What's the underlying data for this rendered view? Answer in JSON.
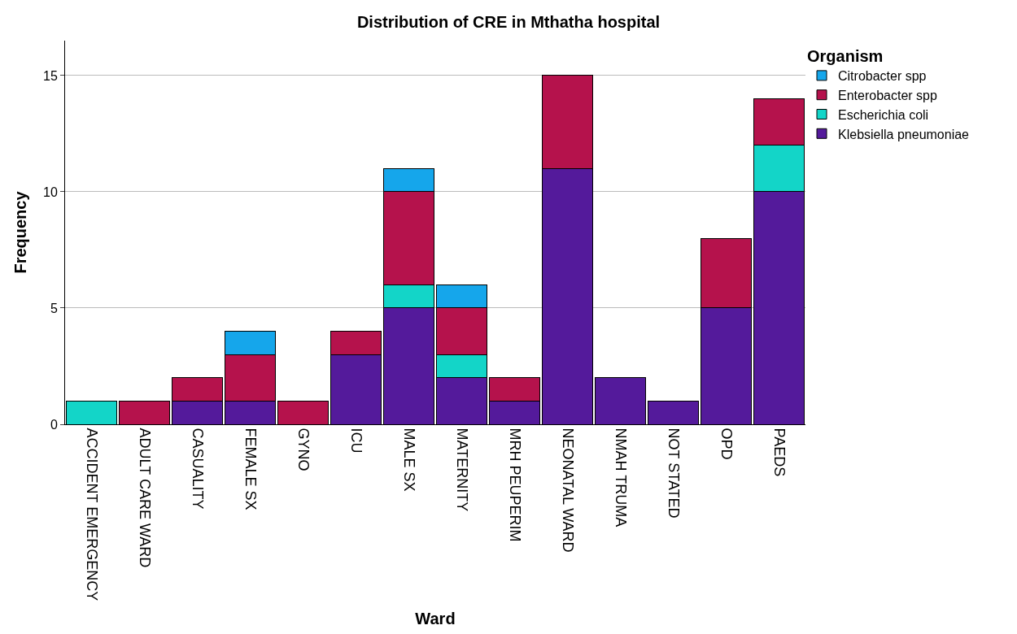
{
  "chart_data": {
    "type": "bar",
    "title": "Distribution of CRE in Mthatha hospital",
    "xlabel": "Ward",
    "ylabel": "Frequency",
    "legend_title": "Organism",
    "stacked": true,
    "legend": "top right",
    "grid": "y",
    "ylim": [
      0,
      16.5
    ],
    "yticks": [
      0,
      5,
      10,
      15
    ],
    "categories": [
      "ACCIDENT EMERGENCY",
      "ADULT CARE WARD",
      "CASUALITY",
      "FEMALE SX",
      "GYNO",
      "ICU",
      "MALE SX",
      "MATERNITY",
      "MRH PEUPERIM",
      "NEONATAL WARD",
      "NMAH TRUMA",
      "NOT STATED",
      "OPD",
      "PAEDS"
    ],
    "series": [
      {
        "name": "Klebsiella pneumoniae",
        "color": "#541a9b",
        "values": [
          null,
          null,
          1,
          1,
          null,
          3,
          5,
          2,
          1,
          11,
          2,
          1,
          5,
          10
        ]
      },
      {
        "name": "Escherichia coli",
        "color": "#13d5c8",
        "values": [
          1,
          null,
          null,
          null,
          null,
          null,
          1,
          1,
          null,
          null,
          null,
          null,
          null,
          2
        ]
      },
      {
        "name": "Enterobacter spp",
        "color": "#b5124c",
        "values": [
          null,
          1,
          1,
          2,
          1,
          1,
          4,
          2,
          1,
          4,
          null,
          null,
          3,
          2
        ]
      },
      {
        "name": "Citrobacter spp",
        "color": "#15a6eb",
        "values": [
          null,
          null,
          null,
          1,
          null,
          null,
          1,
          1,
          null,
          null,
          null,
          null,
          null,
          null
        ]
      }
    ]
  }
}
